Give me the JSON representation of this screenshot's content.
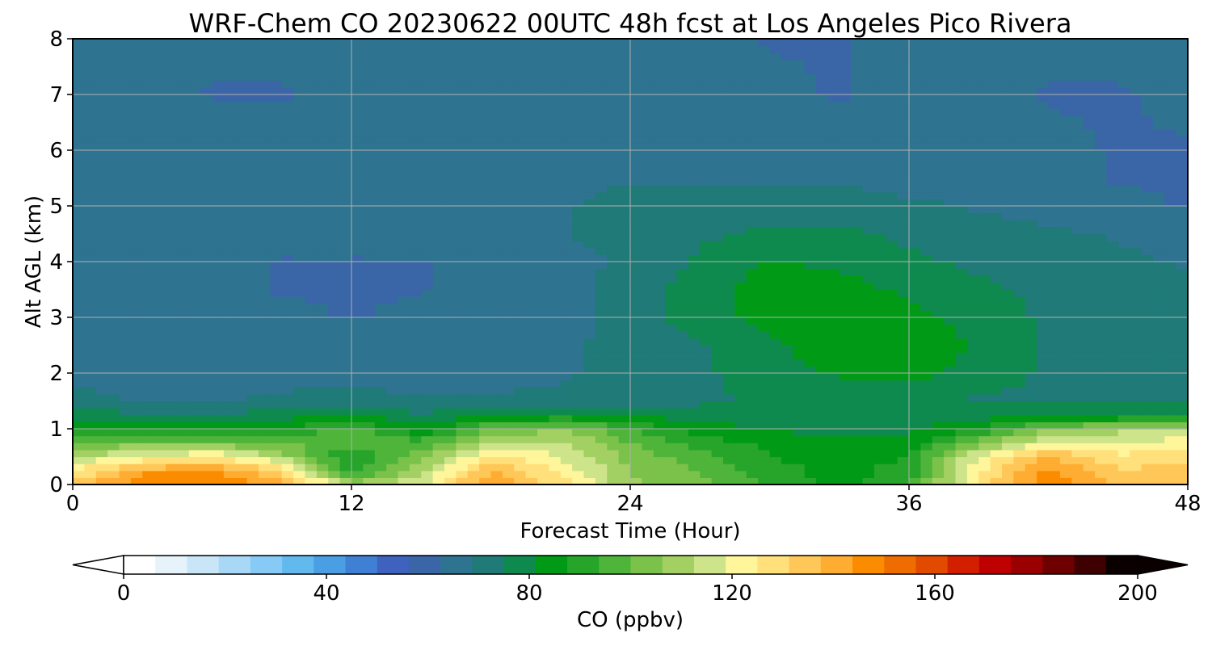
{
  "chart_data": {
    "type": "heatmap",
    "title": "WRF-Chem CO  20230622 00UTC 48h fcst at Los Angeles Pico Rivera",
    "xlabel": "Forecast Time (Hour)",
    "ylabel": "Alt AGL (km)",
    "xlim": [
      0,
      48
    ],
    "ylim": [
      0,
      8
    ],
    "xticks": [
      "0",
      "12",
      "24",
      "36",
      "48"
    ],
    "yticks": [
      "0",
      "1",
      "2",
      "3",
      "4",
      "5",
      "6",
      "7",
      "8"
    ],
    "grid": true,
    "x": [
      0,
      3,
      6,
      9,
      12,
      15,
      18,
      21,
      24,
      27,
      30,
      33,
      36,
      39,
      42,
      45,
      48
    ],
    "y": [
      0,
      0.25,
      0.5,
      0.75,
      1,
      1.25,
      1.5,
      2,
      2.5,
      3,
      3.5,
      4,
      4.5,
      5,
      5.5,
      6,
      7,
      8
    ],
    "z": [
      [
        132,
        150,
        152,
        140,
        110,
        118,
        145,
        128,
        108,
        102,
        92,
        86,
        92,
        128,
        150,
        135,
        138
      ],
      [
        125,
        142,
        144,
        132,
        90,
        110,
        138,
        124,
        106,
        100,
        90,
        85,
        90,
        124,
        146,
        132,
        135
      ],
      [
        112,
        120,
        126,
        110,
        86,
        104,
        128,
        118,
        104,
        96,
        88,
        84,
        88,
        120,
        138,
        126,
        128
      ],
      [
        100,
        104,
        102,
        100,
        98,
        96,
        112,
        114,
        100,
        90,
        86,
        82,
        84,
        104,
        120,
        120,
        122
      ],
      [
        88,
        88,
        86,
        88,
        96,
        82,
        100,
        106,
        94,
        84,
        80,
        80,
        80,
        88,
        104,
        110,
        112
      ],
      [
        78,
        76,
        76,
        78,
        80,
        76,
        80,
        82,
        80,
        78,
        78,
        78,
        76,
        78,
        78,
        80,
        82
      ],
      [
        72,
        68,
        68,
        70,
        72,
        70,
        70,
        70,
        72,
        74,
        76,
        78,
        76,
        74,
        74,
        74,
        74
      ],
      [
        66,
        66,
        66,
        66,
        66,
        64,
        66,
        68,
        70,
        74,
        78,
        82,
        84,
        78,
        74,
        72,
        72
      ],
      [
        66,
        66,
        66,
        66,
        66,
        66,
        66,
        68,
        70,
        74,
        80,
        86,
        86,
        80,
        74,
        72,
        72
      ],
      [
        66,
        66,
        66,
        64,
        62,
        64,
        66,
        66,
        72,
        78,
        84,
        86,
        84,
        78,
        74,
        72,
        70
      ],
      [
        66,
        66,
        64,
        62,
        62,
        62,
        66,
        66,
        72,
        78,
        84,
        84,
        80,
        76,
        74,
        72,
        70
      ],
      [
        66,
        64,
        64,
        62,
        62,
        62,
        66,
        66,
        70,
        76,
        82,
        80,
        76,
        74,
        72,
        70,
        68
      ],
      [
        66,
        66,
        66,
        66,
        66,
        66,
        66,
        68,
        72,
        74,
        76,
        76,
        74,
        72,
        70,
        68,
        66
      ],
      [
        66,
        66,
        66,
        66,
        66,
        66,
        66,
        68,
        72,
        72,
        72,
        72,
        70,
        68,
        66,
        64,
        62
      ],
      [
        66,
        66,
        66,
        66,
        66,
        66,
        66,
        66,
        68,
        68,
        68,
        68,
        66,
        66,
        64,
        62,
        62
      ],
      [
        66,
        66,
        66,
        66,
        66,
        66,
        66,
        66,
        66,
        66,
        66,
        64,
        64,
        64,
        64,
        62,
        62
      ],
      [
        66,
        66,
        62,
        62,
        64,
        66,
        66,
        66,
        66,
        66,
        64,
        62,
        64,
        64,
        62,
        62,
        64
      ],
      [
        66,
        66,
        64,
        64,
        64,
        64,
        64,
        64,
        64,
        64,
        62,
        62,
        64,
        64,
        64,
        64,
        66
      ]
    ],
    "colorbar": {
      "label": "CO  (ppbv)",
      "min": 0,
      "max": 200,
      "ticks": [
        "0",
        "40",
        "80",
        "120",
        "160",
        "200"
      ],
      "extend": "both",
      "colors": [
        "#ffffff",
        "#e6f3fb",
        "#c9e6f8",
        "#a9d8f7",
        "#86caf5",
        "#62b9ee",
        "#4a9ee3",
        "#3f7fd4",
        "#3f62bf",
        "#3a66a8",
        "#2e7390",
        "#1f7a78",
        "#0f8a4f",
        "#009a16",
        "#26a52a",
        "#4fb43a",
        "#7ac24a",
        "#a2d062",
        "#cde48a",
        "#fff59a",
        "#ffe07a",
        "#ffc757",
        "#ffac32",
        "#fb8c00",
        "#ef6c00",
        "#e24a00",
        "#d11f00",
        "#bf0000",
        "#9a0000",
        "#6e0000",
        "#3e0000",
        "#0a0000"
      ]
    }
  }
}
